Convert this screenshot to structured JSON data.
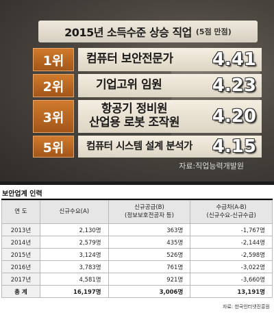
{
  "graphic": {
    "title": "2015년 소득수준 상승 직업",
    "subtitle": "(5점 만점)",
    "rows": [
      {
        "rank": "1위",
        "job": "컴퓨터 보안전문가",
        "job2": "",
        "score": "4.41"
      },
      {
        "rank": "2위",
        "job": "기업고위 임원",
        "job2": "",
        "score": "4.23"
      },
      {
        "rank": "3위",
        "job": "항공기 정비원",
        "job2": "산업용 로봇 조작원",
        "score": "4.20"
      },
      {
        "rank": "5위",
        "job": "컴퓨터 시스템 설계 분석가",
        "job2": "",
        "score": "4.15"
      }
    ],
    "source": "자료:직업능력개발원"
  },
  "table": {
    "title": "보안업계 인력",
    "headers": {
      "year": "연  도",
      "demand": "신규수요(A)",
      "supply_1": "신규공급(B)",
      "supply_2": "(정보보호전공자 등)",
      "gap_1": "수급차(A-B)",
      "gap_2": "(신규수요-신규수급)"
    },
    "rows": [
      {
        "year": "2013년",
        "demand": "2,130명",
        "supply": "363명",
        "gap": "-1,767명"
      },
      {
        "year": "2014년",
        "demand": "2,579명",
        "supply": "435명",
        "gap": "-2,144명"
      },
      {
        "year": "2015년",
        "demand": "3,124명",
        "supply": "526명",
        "gap": "-2,598명"
      },
      {
        "year": "2016년",
        "demand": "3,783명",
        "supply": "761명",
        "gap": "-3,022명"
      },
      {
        "year": "2017년",
        "demand": "4,581명",
        "supply": "921명",
        "gap": "-3,660명"
      }
    ],
    "total": {
      "year": "총  계",
      "demand": "16,197명",
      "supply": "3,006명",
      "gap": "13,191명"
    },
    "source": "자료: 한국인터넷진흥원"
  }
}
